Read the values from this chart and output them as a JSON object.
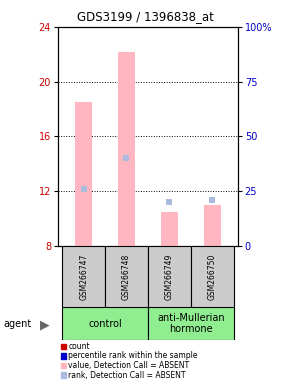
{
  "title": "GDS3199 / 1396838_at",
  "samples": [
    "GSM266747",
    "GSM266748",
    "GSM266749",
    "GSM266750"
  ],
  "bar_values_absent": [
    18.5,
    22.2,
    10.5,
    11.0
  ],
  "rank_values_absent": [
    26,
    40,
    20,
    21
  ],
  "bar_bottom": 8,
  "ylim_left": [
    8,
    24
  ],
  "ylim_right": [
    0,
    100
  ],
  "yticks_left": [
    8,
    12,
    16,
    20,
    24
  ],
  "ytick_labels_left": [
    "8",
    "12",
    "16",
    "20",
    "24"
  ],
  "yticks_right": [
    0,
    25,
    50,
    75,
    100
  ],
  "ytick_labels_right": [
    "0",
    "25",
    "50",
    "75",
    "100%"
  ],
  "dotted_lines": [
    12,
    16,
    20
  ],
  "ylabel_left_color": "#cc0000",
  "ylabel_right_color": "#0000cc",
  "bar_color_absent": "#ffb6c1",
  "rank_color_absent": "#aabbdd",
  "group_label_1": "control",
  "group_label_2": "anti-Mullerian\nhormone",
  "group_color": "#90ee90",
  "sample_box_color": "#cccccc",
  "legend_items": [
    {
      "label": "count",
      "color": "#cc0000"
    },
    {
      "label": "percentile rank within the sample",
      "color": "#0000cc"
    },
    {
      "label": "value, Detection Call = ABSENT",
      "color": "#ffb6c1"
    },
    {
      "label": "rank, Detection Call = ABSENT",
      "color": "#aabbdd"
    }
  ],
  "agent_label": "agent",
  "bar_width": 0.4,
  "x_positions": [
    0,
    1,
    2,
    3
  ],
  "title_color": "black",
  "bg_color": "white"
}
